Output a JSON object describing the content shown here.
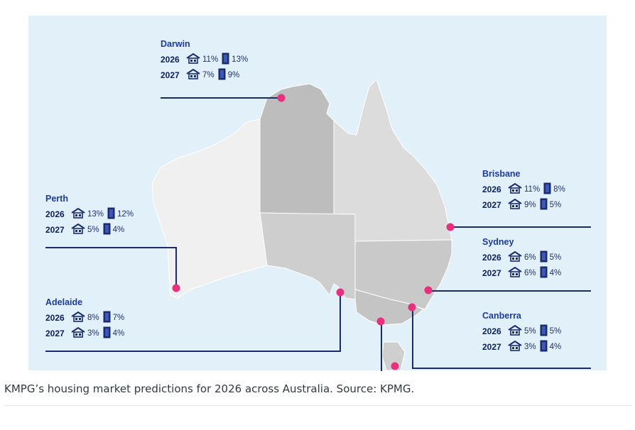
{
  "caption": "KMPG’s housing market predictions for 2026 across Australia. Source: KPMG.",
  "colors": {
    "background": "#e2f1f9",
    "marker": "#e8307e",
    "line": "#1a2b6e",
    "text": "#1c3aa0"
  },
  "icons": {
    "house": "house-icon",
    "apartment": "apartment-icon"
  },
  "regions": [
    "Western Australia",
    "Northern Territory",
    "Queensland",
    "South Australia",
    "New South Wales",
    "Victoria",
    "Tasmania"
  ],
  "cities": {
    "darwin": {
      "name": "Darwin",
      "rows": [
        {
          "year": "2026",
          "house": "11%",
          "unit": "13%"
        },
        {
          "year": "2027",
          "house": "7%",
          "unit": "9%"
        }
      ]
    },
    "perth": {
      "name": "Perth",
      "rows": [
        {
          "year": "2026",
          "house": "13%",
          "unit": "12%"
        },
        {
          "year": "2027",
          "house": "5%",
          "unit": "4%"
        }
      ]
    },
    "adelaide": {
      "name": "Adelaide",
      "rows": [
        {
          "year": "2026",
          "house": "8%",
          "unit": "7%"
        },
        {
          "year": "2027",
          "house": "3%",
          "unit": "4%"
        }
      ]
    },
    "brisbane": {
      "name": "Brisbane",
      "rows": [
        {
          "year": "2026",
          "house": "11%",
          "unit": "8%"
        },
        {
          "year": "2027",
          "house": "9%",
          "unit": "5%"
        }
      ]
    },
    "sydney": {
      "name": "Sydney",
      "rows": [
        {
          "year": "2026",
          "house": "6%",
          "unit": "5%"
        },
        {
          "year": "2027",
          "house": "6%",
          "unit": "4%"
        }
      ]
    },
    "canberra": {
      "name": "Canberra",
      "rows": [
        {
          "year": "2026",
          "house": "5%",
          "unit": "5%"
        },
        {
          "year": "2027",
          "house": "3%",
          "unit": "4%"
        }
      ]
    }
  }
}
